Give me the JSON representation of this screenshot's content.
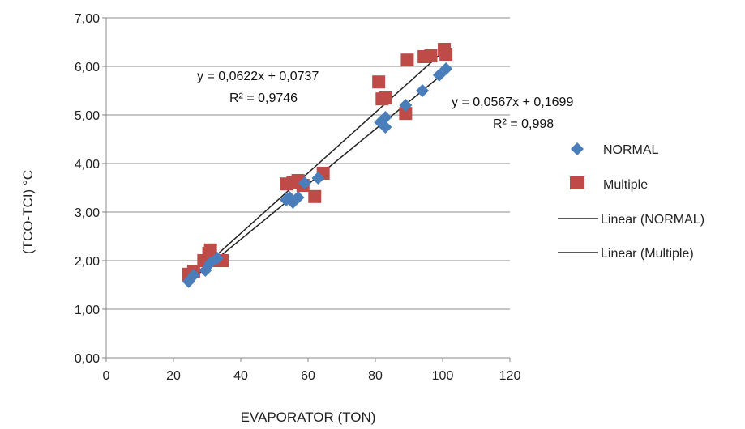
{
  "chart_data": {
    "type": "scatter",
    "xlabel": "EVAPORATOR (TON)",
    "ylabel": "(TCO-TCI) °C",
    "xlim": [
      0,
      120
    ],
    "ylim": [
      0,
      7
    ],
    "x_ticks": [
      "0",
      "20",
      "40",
      "60",
      "80",
      "100",
      "120"
    ],
    "y_ticks": [
      "0,00",
      "1,00",
      "2,00",
      "3,00",
      "4,00",
      "5,00",
      "6,00",
      "7,00"
    ],
    "grid": "horizontal",
    "legend_position": "right",
    "series": [
      {
        "name": "NORMAL",
        "marker": "diamond",
        "color": "#4a7ebb",
        "points": [
          [
            24.5,
            1.57
          ],
          [
            26,
            1.7
          ],
          [
            29.5,
            1.8
          ],
          [
            31,
            1.95
          ],
          [
            33,
            2.05
          ],
          [
            53.5,
            3.25
          ],
          [
            54.5,
            3.3
          ],
          [
            55.5,
            3.2
          ],
          [
            57,
            3.3
          ],
          [
            59,
            3.6
          ],
          [
            63,
            3.7
          ],
          [
            81.5,
            4.85
          ],
          [
            83,
            4.75
          ],
          [
            83,
            4.95
          ],
          [
            89,
            5.2
          ],
          [
            94,
            5.5
          ],
          [
            99,
            5.82
          ],
          [
            101,
            5.95
          ]
        ]
      },
      {
        "name": "Multiple",
        "marker": "square",
        "color": "#be4b48",
        "points": [
          [
            24.5,
            1.72
          ],
          [
            26,
            1.78
          ],
          [
            29,
            2.0
          ],
          [
            30.5,
            2.15
          ],
          [
            31,
            2.22
          ],
          [
            33,
            2.0
          ],
          [
            34.5,
            2.0
          ],
          [
            53.5,
            3.58
          ],
          [
            55.5,
            3.6
          ],
          [
            57,
            3.65
          ],
          [
            58.5,
            3.55
          ],
          [
            62,
            3.32
          ],
          [
            64.5,
            3.8
          ],
          [
            81,
            5.68
          ],
          [
            82,
            5.33
          ],
          [
            83,
            5.35
          ],
          [
            89,
            5.03
          ],
          [
            89.5,
            6.13
          ],
          [
            94.5,
            6.2
          ],
          [
            96.5,
            6.22
          ],
          [
            100.5,
            6.35
          ],
          [
            101,
            6.25
          ]
        ]
      }
    ],
    "trendlines": [
      {
        "name": "Linear (NORMAL)",
        "slope": 0.0567,
        "intercept": 0.1699,
        "x_range": [
          24.5,
          101
        ],
        "equation": "y = 0,0567x + 0,1699",
        "r2": "R² = 0,998",
        "color": "#222222"
      },
      {
        "name": "Linear (Multiple)",
        "slope": 0.0622,
        "intercept": 0.0737,
        "x_range": [
          24.5,
          101
        ],
        "equation": "y = 0,0622x + 0,0737",
        "r2": "R² = 0,9746",
        "color": "#222222"
      }
    ]
  }
}
